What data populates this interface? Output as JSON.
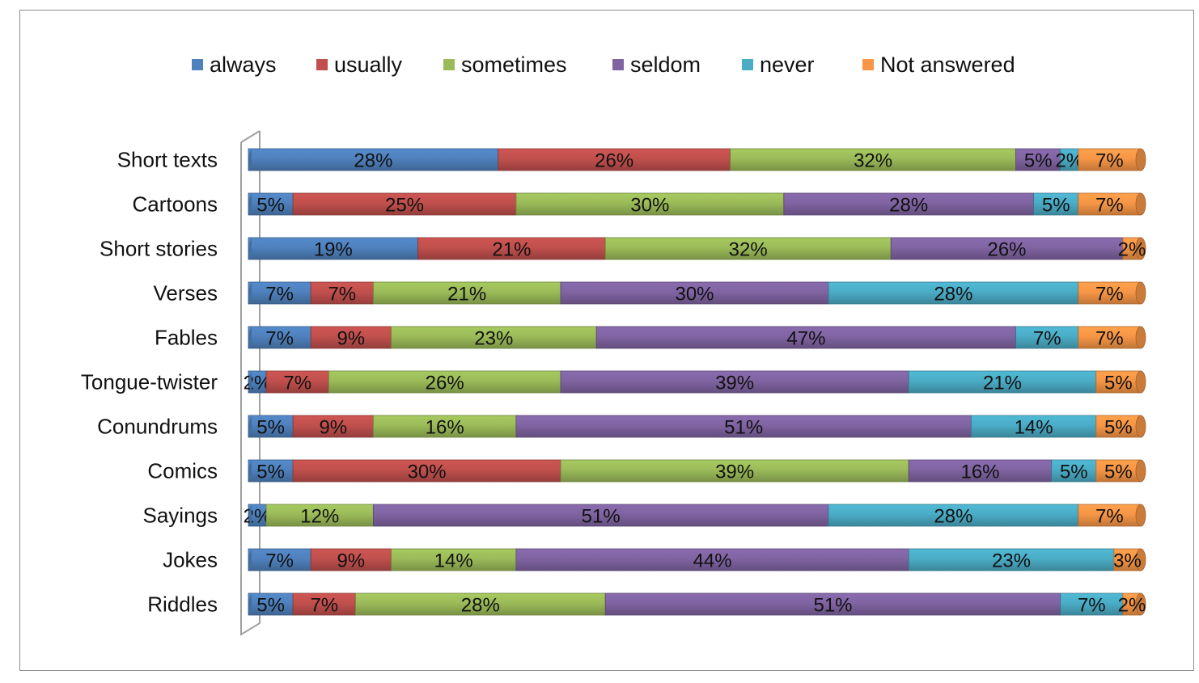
{
  "chart_data": {
    "type": "bar",
    "orientation": "horizontal",
    "stacked": "percent",
    "categories": [
      "Short texts",
      "Cartoons",
      "Short stories",
      "Verses",
      "Fables",
      "Tongue-twister",
      "Conundrums",
      "Comics",
      "Sayings",
      "Jokes",
      "Riddles"
    ],
    "series": [
      {
        "name": "always",
        "color": "#4f81bd",
        "values": [
          28,
          5,
          19,
          7,
          7,
          2,
          5,
          5,
          2,
          7,
          5
        ]
      },
      {
        "name": "usually",
        "color": "#c0504d",
        "values": [
          26,
          25,
          21,
          7,
          9,
          7,
          9,
          30,
          0,
          9,
          7
        ]
      },
      {
        "name": "sometimes",
        "color": "#9bbb59",
        "values": [
          32,
          30,
          32,
          21,
          23,
          26,
          16,
          39,
          12,
          14,
          28
        ]
      },
      {
        "name": "seldom",
        "color": "#8064a2",
        "values": [
          5,
          28,
          26,
          30,
          47,
          39,
          51,
          16,
          51,
          44,
          51
        ]
      },
      {
        "name": "never",
        "color": "#4bacc6",
        "values": [
          2,
          5,
          0,
          28,
          7,
          21,
          14,
          5,
          28,
          23,
          7
        ]
      },
      {
        "name": "Not answered",
        "color": "#f79646",
        "values": [
          7,
          7,
          2,
          7,
          7,
          5,
          5,
          5,
          7,
          3,
          2
        ]
      }
    ],
    "value_suffix": "%",
    "legend_position": "top",
    "grid": false,
    "title": "",
    "xlabel": "",
    "ylabel": ""
  }
}
